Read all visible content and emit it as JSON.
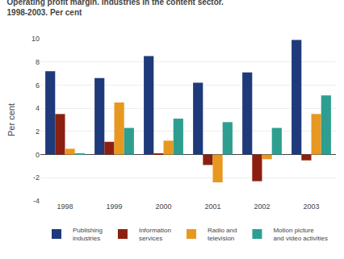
{
  "chart_data": {
    "type": "bar",
    "title": "Operating profit margin. Industries in the content sector.",
    "subtitle": "1998-2003. Per cent",
    "ylabel": "Per cent",
    "categories": [
      "1998",
      "1999",
      "2000",
      "2001",
      "2002",
      "2003"
    ],
    "series": [
      {
        "name": "Publishing\nindustries",
        "color": "#1F3A7A",
        "values": [
          7.2,
          6.6,
          8.5,
          6.2,
          7.1,
          9.9
        ]
      },
      {
        "name": "Information\nservices",
        "color": "#8B2010",
        "values": [
          3.5,
          1.1,
          0.1,
          -0.9,
          -2.3,
          -0.5
        ]
      },
      {
        "name": "Radio and\ntelevision",
        "color": "#E89820",
        "values": [
          0.5,
          4.5,
          1.2,
          -2.4,
          -0.4,
          3.5
        ]
      },
      {
        "name": "Motion picture\nand video activities",
        "color": "#2E9E90",
        "values": [
          0.05,
          2.3,
          3.1,
          2.8,
          2.3,
          5.1
        ]
      }
    ],
    "ylim": [
      -4,
      10
    ],
    "yticks": [
      -4,
      -2,
      0,
      2,
      4,
      6,
      8,
      10
    ],
    "grid": true,
    "legend": "bottom"
  }
}
